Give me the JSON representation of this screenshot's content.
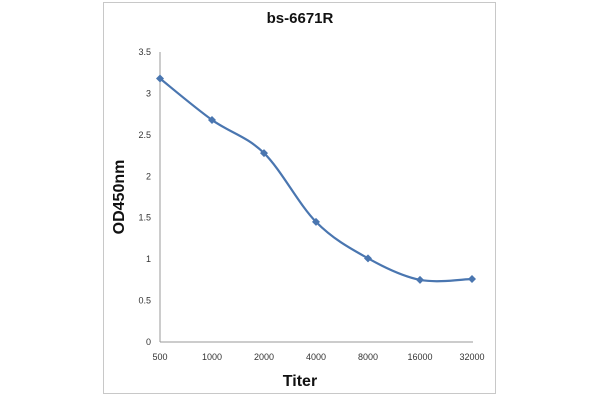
{
  "chart_data": {
    "type": "line",
    "title": "bs-6671R",
    "xlabel": "Titer",
    "ylabel": "OD450nm",
    "categories": [
      "500",
      "1000",
      "2000",
      "4000",
      "8000",
      "16000",
      "32000"
    ],
    "series": [
      {
        "name": "bs-6671R",
        "values": [
          3.18,
          2.68,
          2.28,
          1.45,
          1.01,
          0.75,
          0.76
        ],
        "color": "#4a76b0"
      }
    ],
    "ylim": [
      0,
      3.5
    ],
    "yticks": [
      "0",
      "0.5",
      "1",
      "1.5",
      "2",
      "2.5",
      "3",
      "3.5"
    ],
    "grid": false,
    "smooth": true,
    "marker": "diamond"
  }
}
